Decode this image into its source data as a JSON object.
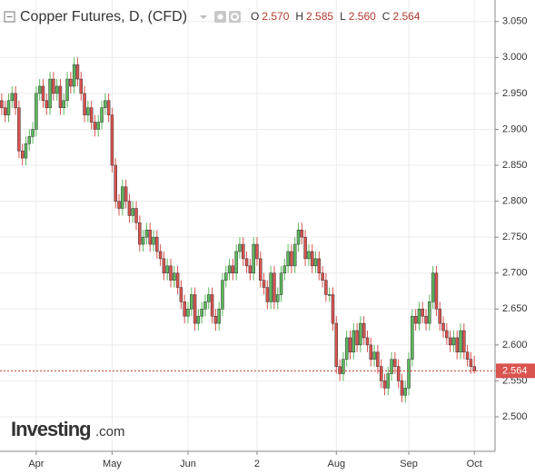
{
  "chart_data": {
    "type": "candlestick",
    "title": "Copper Futures, D, (CFD)",
    "ohlc_header": [
      {
        "name": "O",
        "value": "2.570"
      },
      {
        "name": "H",
        "value": "2.585"
      },
      {
        "name": "L",
        "value": "2.560"
      },
      {
        "name": "C",
        "value": "2.564"
      }
    ],
    "x": [
      0,
      1,
      2,
      3,
      4,
      5,
      6,
      7,
      8,
      9,
      10,
      11,
      12,
      13,
      14,
      15,
      16,
      17,
      18,
      19,
      20,
      21,
      22,
      23,
      24,
      25,
      26,
      27,
      28,
      29,
      30,
      31,
      32,
      33,
      34,
      35,
      36,
      37,
      38,
      39,
      40,
      41,
      42,
      43,
      44,
      45,
      46,
      47,
      48,
      49,
      50,
      51,
      52,
      53,
      54,
      55,
      56,
      57,
      58,
      59,
      60,
      61,
      62,
      63,
      64,
      65,
      66,
      67,
      68,
      69,
      70,
      71,
      72,
      73,
      74,
      75,
      76,
      77,
      78,
      79,
      80,
      81,
      82,
      83,
      84,
      85,
      86,
      87,
      88,
      89,
      90,
      91,
      92,
      93,
      94,
      95,
      96,
      97,
      98,
      99,
      100,
      101,
      102,
      103,
      104,
      105,
      106,
      107,
      108,
      109,
      110,
      111,
      112,
      113,
      114,
      115,
      116,
      117,
      118,
      119,
      120,
      121,
      122,
      123,
      124,
      125,
      126,
      127,
      128,
      129,
      130,
      131,
      132,
      133,
      134,
      135,
      136,
      137
    ],
    "open": [
      2.94,
      2.93,
      2.92,
      2.94,
      2.95,
      2.93,
      2.87,
      2.86,
      2.88,
      2.89,
      2.9,
      2.95,
      2.96,
      2.94,
      2.93,
      2.97,
      2.95,
      2.96,
      2.93,
      2.94,
      2.97,
      2.96,
      2.99,
      2.97,
      2.95,
      2.92,
      2.93,
      2.91,
      2.9,
      2.91,
      2.93,
      2.94,
      2.92,
      2.85,
      2.8,
      2.79,
      2.82,
      2.8,
      2.78,
      2.79,
      2.77,
      2.74,
      2.75,
      2.76,
      2.74,
      2.75,
      2.73,
      2.72,
      2.7,
      2.71,
      2.69,
      2.7,
      2.68,
      2.66,
      2.64,
      2.65,
      2.67,
      2.63,
      2.64,
      2.65,
      2.66,
      2.67,
      2.64,
      2.63,
      2.65,
      2.69,
      2.7,
      2.71,
      2.7,
      2.73,
      2.74,
      2.72,
      2.71,
      2.7,
      2.74,
      2.72,
      2.69,
      2.68,
      2.66,
      2.7,
      2.66,
      2.67,
      2.7,
      2.71,
      2.73,
      2.71,
      2.74,
      2.76,
      2.75,
      2.72,
      2.73,
      2.71,
      2.72,
      2.7,
      2.69,
      2.67,
      2.67,
      2.63,
      2.57,
      2.56,
      2.58,
      2.61,
      2.59,
      2.62,
      2.6,
      2.63,
      2.61,
      2.6,
      2.58,
      2.59,
      2.57,
      2.55,
      2.54,
      2.56,
      2.58,
      2.57,
      2.55,
      2.53,
      2.54,
      2.58,
      2.64,
      2.63,
      2.65,
      2.64,
      2.63,
      2.66,
      2.7,
      2.65,
      2.63,
      2.62,
      2.61,
      2.6,
      2.61,
      2.59,
      2.62,
      2.59,
      2.58,
      2.57
    ],
    "high": [
      2.95,
      2.94,
      2.95,
      2.96,
      2.96,
      2.94,
      2.88,
      2.89,
      2.9,
      2.91,
      2.96,
      2.97,
      2.97,
      2.95,
      2.98,
      2.98,
      2.97,
      2.97,
      2.95,
      2.98,
      2.98,
      3.0,
      3.0,
      2.98,
      2.96,
      2.94,
      2.94,
      2.92,
      2.92,
      2.94,
      2.95,
      2.95,
      2.93,
      2.86,
      2.81,
      2.83,
      2.83,
      2.81,
      2.8,
      2.8,
      2.78,
      2.76,
      2.77,
      2.77,
      2.76,
      2.76,
      2.74,
      2.73,
      2.72,
      2.72,
      2.71,
      2.71,
      2.69,
      2.67,
      2.66,
      2.68,
      2.68,
      2.65,
      2.66,
      2.67,
      2.68,
      2.68,
      2.65,
      2.66,
      2.7,
      2.71,
      2.72,
      2.72,
      2.74,
      2.75,
      2.75,
      2.73,
      2.72,
      2.75,
      2.75,
      2.73,
      2.7,
      2.69,
      2.71,
      2.71,
      2.68,
      2.71,
      2.72,
      2.74,
      2.74,
      2.75,
      2.77,
      2.77,
      2.76,
      2.74,
      2.74,
      2.73,
      2.73,
      2.71,
      2.7,
      2.68,
      2.68,
      2.64,
      2.58,
      2.59,
      2.62,
      2.62,
      2.63,
      2.63,
      2.64,
      2.64,
      2.62,
      2.61,
      2.6,
      2.6,
      2.58,
      2.56,
      2.57,
      2.59,
      2.59,
      2.58,
      2.56,
      2.55,
      2.59,
      2.65,
      2.65,
      2.66,
      2.66,
      2.65,
      2.67,
      2.71,
      2.71,
      2.66,
      2.64,
      2.63,
      2.62,
      2.62,
      2.62,
      2.63,
      2.63,
      2.6,
      2.59,
      2.585
    ],
    "low": [
      2.92,
      2.91,
      2.91,
      2.93,
      2.92,
      2.86,
      2.85,
      2.85,
      2.87,
      2.88,
      2.89,
      2.94,
      2.93,
      2.92,
      2.92,
      2.94,
      2.94,
      2.92,
      2.92,
      2.93,
      2.95,
      2.95,
      2.96,
      2.94,
      2.91,
      2.91,
      2.9,
      2.89,
      2.89,
      2.9,
      2.92,
      2.91,
      2.84,
      2.79,
      2.78,
      2.78,
      2.79,
      2.77,
      2.77,
      2.76,
      2.73,
      2.73,
      2.74,
      2.73,
      2.73,
      2.72,
      2.71,
      2.69,
      2.69,
      2.68,
      2.68,
      2.67,
      2.65,
      2.63,
      2.63,
      2.64,
      2.62,
      2.62,
      2.63,
      2.64,
      2.65,
      2.63,
      2.62,
      2.62,
      2.64,
      2.68,
      2.69,
      2.69,
      2.69,
      2.72,
      2.71,
      2.7,
      2.69,
      2.69,
      2.71,
      2.68,
      2.67,
      2.65,
      2.65,
      2.65,
      2.65,
      2.66,
      2.69,
      2.7,
      2.7,
      2.7,
      2.73,
      2.74,
      2.71,
      2.71,
      2.7,
      2.7,
      2.69,
      2.68,
      2.66,
      2.66,
      2.62,
      2.56,
      2.55,
      2.55,
      2.57,
      2.58,
      2.58,
      2.59,
      2.59,
      2.6,
      2.59,
      2.57,
      2.57,
      2.56,
      2.54,
      2.53,
      2.53,
      2.55,
      2.56,
      2.54,
      2.52,
      2.52,
      2.53,
      2.57,
      2.62,
      2.62,
      2.63,
      2.62,
      2.62,
      2.65,
      2.64,
      2.62,
      2.61,
      2.6,
      2.59,
      2.59,
      2.58,
      2.58,
      2.58,
      2.57,
      2.56,
      2.56
    ],
    "close": [
      2.93,
      2.92,
      2.94,
      2.95,
      2.93,
      2.87,
      2.86,
      2.88,
      2.89,
      2.9,
      2.95,
      2.96,
      2.94,
      2.93,
      2.97,
      2.95,
      2.96,
      2.93,
      2.94,
      2.97,
      2.96,
      2.99,
      2.97,
      2.95,
      2.92,
      2.93,
      2.91,
      2.9,
      2.91,
      2.93,
      2.94,
      2.92,
      2.85,
      2.8,
      2.79,
      2.82,
      2.8,
      2.78,
      2.79,
      2.77,
      2.74,
      2.75,
      2.76,
      2.74,
      2.75,
      2.73,
      2.72,
      2.7,
      2.71,
      2.69,
      2.7,
      2.68,
      2.66,
      2.64,
      2.65,
      2.67,
      2.63,
      2.64,
      2.65,
      2.66,
      2.67,
      2.64,
      2.63,
      2.65,
      2.69,
      2.7,
      2.71,
      2.7,
      2.73,
      2.74,
      2.72,
      2.71,
      2.7,
      2.74,
      2.72,
      2.69,
      2.68,
      2.66,
      2.7,
      2.66,
      2.67,
      2.7,
      2.71,
      2.73,
      2.71,
      2.74,
      2.76,
      2.75,
      2.72,
      2.73,
      2.71,
      2.72,
      2.7,
      2.69,
      2.67,
      2.67,
      2.63,
      2.57,
      2.56,
      2.58,
      2.61,
      2.59,
      2.62,
      2.6,
      2.63,
      2.61,
      2.6,
      2.58,
      2.59,
      2.57,
      2.55,
      2.54,
      2.56,
      2.58,
      2.57,
      2.55,
      2.53,
      2.54,
      2.58,
      2.64,
      2.63,
      2.65,
      2.64,
      2.63,
      2.66,
      2.7,
      2.65,
      2.63,
      2.62,
      2.61,
      2.6,
      2.61,
      2.59,
      2.62,
      2.59,
      2.58,
      2.57,
      2.564
    ],
    "up_color": "#5cb85c",
    "down_color": "#d9534f",
    "xlim": [
      -0.5,
      143
    ],
    "xticks": [
      {
        "value": 10,
        "label": "Apr"
      },
      {
        "value": 32,
        "label": "May"
      },
      {
        "value": 54,
        "label": "Jun"
      },
      {
        "value": 74,
        "label": "2"
      },
      {
        "value": 97,
        "label": "Aug"
      },
      {
        "value": 118,
        "label": "Sep"
      },
      {
        "value": 137,
        "label": "Oct"
      }
    ],
    "ylim": [
      2.452,
      3.08
    ],
    "yticks": [
      {
        "value": 2.5,
        "label": "2.500"
      },
      {
        "value": 2.55,
        "label": "2.550"
      },
      {
        "value": 2.6,
        "label": "2.600"
      },
      {
        "value": 2.65,
        "label": "2.650"
      },
      {
        "value": 2.7,
        "label": "2.700"
      },
      {
        "value": 2.75,
        "label": "2.750"
      },
      {
        "value": 2.8,
        "label": "2.800"
      },
      {
        "value": 2.85,
        "label": "2.850"
      },
      {
        "value": 2.9,
        "label": "2.900"
      },
      {
        "value": 2.95,
        "label": "2.950"
      },
      {
        "value": 3.0,
        "label": "3.000"
      },
      {
        "value": 3.05,
        "label": "3.050"
      }
    ],
    "last_price": {
      "value": 2.564,
      "label": "2.564"
    },
    "grid": true,
    "watermark": {
      "brand": "Investing",
      "suffix": ".com"
    }
  }
}
